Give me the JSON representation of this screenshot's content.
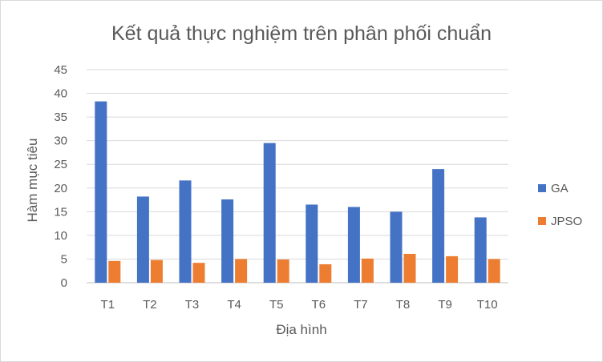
{
  "chart_data": {
    "type": "bar",
    "title": "Kết quả thực nghiệm trên phân phối chuẩn",
    "xlabel": "Địa hình",
    "ylabel": "Hàm mục tiêu",
    "ylim": [
      0,
      45
    ],
    "yticks": [
      0,
      5,
      10,
      15,
      20,
      25,
      30,
      35,
      40,
      45
    ],
    "grid": true,
    "legend_position": "right",
    "categories": [
      "T1",
      "T2",
      "T3",
      "T4",
      "T5",
      "T6",
      "T7",
      "T8",
      "T9",
      "T10"
    ],
    "series": [
      {
        "name": "GA",
        "color": "#4472C4",
        "values": [
          38.3,
          18.2,
          21.6,
          17.6,
          29.5,
          16.5,
          16.0,
          15.0,
          24.0,
          13.8
        ]
      },
      {
        "name": "JPSO",
        "color": "#ED7D31",
        "values": [
          4.6,
          4.8,
          4.2,
          5.0,
          4.9,
          3.9,
          5.1,
          6.1,
          5.6,
          5.0
        ]
      }
    ]
  }
}
